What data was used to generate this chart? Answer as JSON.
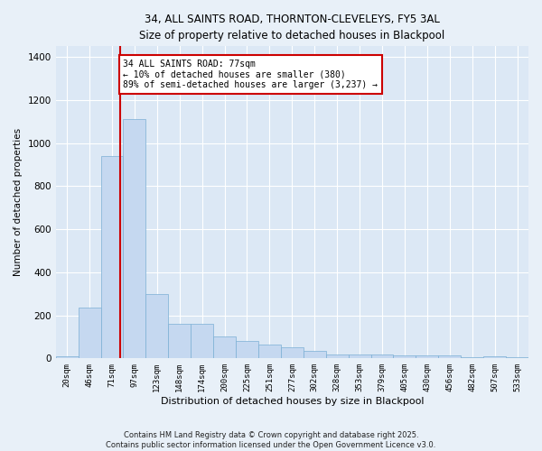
{
  "title_line1": "34, ALL SAINTS ROAD, THORNTON-CLEVELEYS, FY5 3AL",
  "title_line2": "Size of property relative to detached houses in Blackpool",
  "xlabel": "Distribution of detached houses by size in Blackpool",
  "ylabel": "Number of detached properties",
  "bar_color": "#c5d8f0",
  "bar_edge_color": "#7bafd4",
  "background_color": "#dce8f5",
  "grid_color": "#ffffff",
  "annotation_box_text": "34 ALL SAINTS ROAD: 77sqm\n← 10% of detached houses are smaller (380)\n89% of semi-detached houses are larger (3,237) →",
  "annotation_box_color": "#ffffff",
  "annotation_box_edge_color": "#cc0000",
  "vline_color": "#cc0000",
  "categories": [
    "20sqm",
    "46sqm",
    "71sqm",
    "97sqm",
    "123sqm",
    "148sqm",
    "174sqm",
    "200sqm",
    "225sqm",
    "251sqm",
    "277sqm",
    "302sqm",
    "328sqm",
    "353sqm",
    "379sqm",
    "405sqm",
    "430sqm",
    "456sqm",
    "482sqm",
    "507sqm",
    "533sqm"
  ],
  "values": [
    10,
    235,
    940,
    1110,
    300,
    160,
    160,
    100,
    80,
    65,
    50,
    35,
    18,
    18,
    18,
    15,
    12,
    12,
    5,
    10,
    5
  ],
  "ylim": [
    0,
    1450
  ],
  "yticks": [
    0,
    200,
    400,
    600,
    800,
    1000,
    1200,
    1400
  ],
  "footnote_line1": "Contains HM Land Registry data © Crown copyright and database right 2025.",
  "footnote_line2": "Contains public sector information licensed under the Open Government Licence v3.0.",
  "bar_width": 1.0,
  "vline_pos": 2.35
}
